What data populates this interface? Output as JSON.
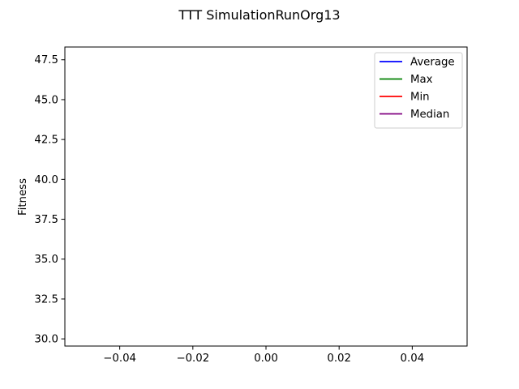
{
  "chart_data": {
    "type": "line",
    "title": "TTT SimulationRunOrg13",
    "xlabel": "",
    "ylabel": "Fitness",
    "xlim": [
      -0.055,
      0.055
    ],
    "ylim": [
      29.55,
      48.3
    ],
    "xticks": [
      -0.04,
      -0.02,
      0.0,
      0.02,
      0.04
    ],
    "xtick_labels": [
      "−0.04",
      "−0.02",
      "0.00",
      "0.02",
      "0.04"
    ],
    "yticks": [
      30.0,
      32.5,
      35.0,
      37.5,
      40.0,
      42.5,
      45.0,
      47.5
    ],
    "ytick_labels": [
      "30.0",
      "32.5",
      "35.0",
      "37.5",
      "40.0",
      "42.5",
      "45.0",
      "47.5"
    ],
    "grid": false,
    "legend_position": "top-right",
    "series": [
      {
        "name": "Average",
        "color": "#0000ff",
        "x": [],
        "y": []
      },
      {
        "name": "Max",
        "color": "#008000",
        "x": [],
        "y": []
      },
      {
        "name": "Min",
        "color": "#ff0000",
        "x": [],
        "y": []
      },
      {
        "name": "Median",
        "color": "#800080",
        "x": [],
        "y": []
      }
    ]
  }
}
